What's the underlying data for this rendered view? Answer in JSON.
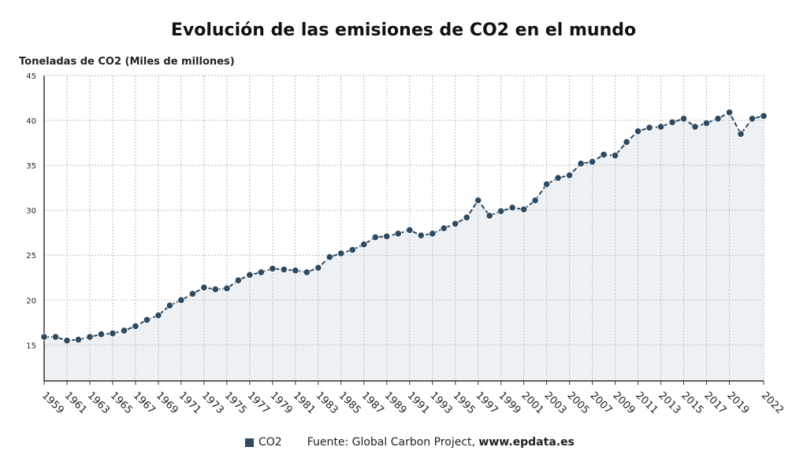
{
  "title": "Evolución de las emisiones de CO2 en el mundo",
  "colors": {
    "line": "#2d4a63",
    "marker": "#2d4a63",
    "area": "#eef1f4",
    "grid": "#bdbdbd",
    "axis": "#333333"
  },
  "legend": {
    "series_label": "CO2",
    "source_prefix": "Fuente: Global Carbon Project, ",
    "source_url": "www.epdata.es"
  },
  "chart_data": {
    "type": "line",
    "title": "Evolución de las emisiones de CO2 en el mundo",
    "ylabel": "Toneladas de CO2 (Miles de millones)",
    "xlabel": "",
    "ylim": [
      11,
      45
    ],
    "yticks": [
      15,
      20,
      25,
      30,
      35,
      40,
      45
    ],
    "xtick_labels": [
      "1959",
      "1961",
      "1963",
      "1965",
      "1967",
      "1969",
      "1971",
      "1973",
      "1975",
      "1977",
      "1979",
      "1981",
      "1983",
      "1985",
      "1987",
      "1989",
      "1991",
      "1993",
      "1995",
      "1997",
      "1999",
      "2001",
      "2003",
      "2005",
      "2007",
      "2009",
      "2011",
      "2013",
      "2015",
      "2017",
      "2019",
      "2022"
    ],
    "grid": true,
    "legend_position": "bottom",
    "series": [
      {
        "name": "CO2",
        "x": [
          1959,
          1960,
          1961,
          1962,
          1963,
          1964,
          1965,
          1966,
          1967,
          1968,
          1969,
          1970,
          1971,
          1972,
          1973,
          1974,
          1975,
          1976,
          1977,
          1978,
          1979,
          1980,
          1981,
          1982,
          1983,
          1984,
          1985,
          1986,
          1987,
          1988,
          1989,
          1990,
          1991,
          1992,
          1993,
          1994,
          1995,
          1996,
          1997,
          1998,
          1999,
          2000,
          2001,
          2002,
          2003,
          2004,
          2005,
          2006,
          2007,
          2008,
          2009,
          2010,
          2011,
          2012,
          2013,
          2014,
          2015,
          2016,
          2017,
          2018,
          2019,
          2020,
          2021,
          2022
        ],
        "values": [
          15.9,
          15.9,
          15.5,
          15.6,
          15.9,
          16.2,
          16.3,
          16.6,
          17.1,
          17.8,
          18.3,
          19.4,
          20.0,
          20.7,
          21.4,
          21.2,
          21.3,
          22.2,
          22.8,
          23.1,
          23.5,
          23.4,
          23.3,
          23.1,
          23.6,
          24.8,
          25.2,
          25.6,
          26.2,
          27.0,
          27.1,
          27.4,
          27.8,
          27.2,
          27.4,
          28.0,
          28.5,
          29.2,
          31.1,
          29.4,
          29.9,
          30.3,
          30.1,
          31.1,
          32.9,
          33.6,
          33.9,
          35.2,
          35.4,
          36.2,
          36.1,
          37.6,
          38.8,
          39.2,
          39.3,
          39.8,
          40.2,
          39.3,
          39.7,
          40.2,
          40.9,
          38.5,
          40.2,
          40.5
        ]
      }
    ]
  }
}
